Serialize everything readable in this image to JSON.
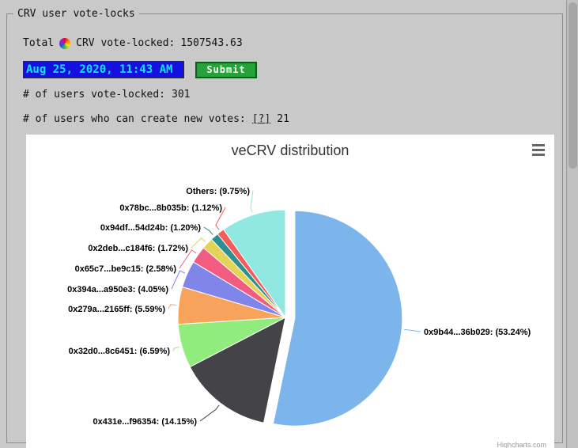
{
  "panel": {
    "legend": "CRV user vote-locks",
    "total": {
      "prefix": "Total",
      "suffix": "CRV vote-locked:",
      "value": "1507543.63"
    },
    "date_value": "Aug 25, 2020, 11:43 AM",
    "submit_label": "Submit",
    "stat_locked": {
      "label": "# of users vote-locked:",
      "value": "301"
    },
    "stat_votes": {
      "label": "# of users who can create new votes:",
      "help_link": "[?]",
      "value": "21"
    }
  },
  "icons": {
    "total": "crv-logo-icon",
    "chart_menu": "hamburger-menu-icon"
  },
  "chart_data": {
    "type": "pie",
    "title": "veCRV distribution",
    "credits": "Highcharts.com",
    "unit": "%",
    "legend_position": "none",
    "label_format": "{label}: ({value}%)",
    "slices": [
      {
        "label": "0x9b44...36b029",
        "value": 53.24,
        "color": "#7cb5ec",
        "sliced": true
      },
      {
        "label": "0x431e...f96354",
        "value": 14.15,
        "color": "#434348"
      },
      {
        "label": "0x32d0...8c6451",
        "value": 6.59,
        "color": "#90ed7d"
      },
      {
        "label": "0x279a...2165ff",
        "value": 5.59,
        "color": "#f7a35c"
      },
      {
        "label": "0x394a...a950e3",
        "value": 4.05,
        "color": "#8085e9"
      },
      {
        "label": "0x65c7...be9c15",
        "value": 2.58,
        "color": "#f15c80"
      },
      {
        "label": "0x2deb...c184f6",
        "value": 1.72,
        "color": "#e4d354"
      },
      {
        "label": "0x94df...54d24b",
        "value": 1.2,
        "color": "#2b908f"
      },
      {
        "label": "0x78bc...8b035b",
        "value": 1.12,
        "color": "#f45b5b"
      },
      {
        "label": "Others",
        "value": 9.75,
        "color": "#91e8e1"
      }
    ]
  }
}
